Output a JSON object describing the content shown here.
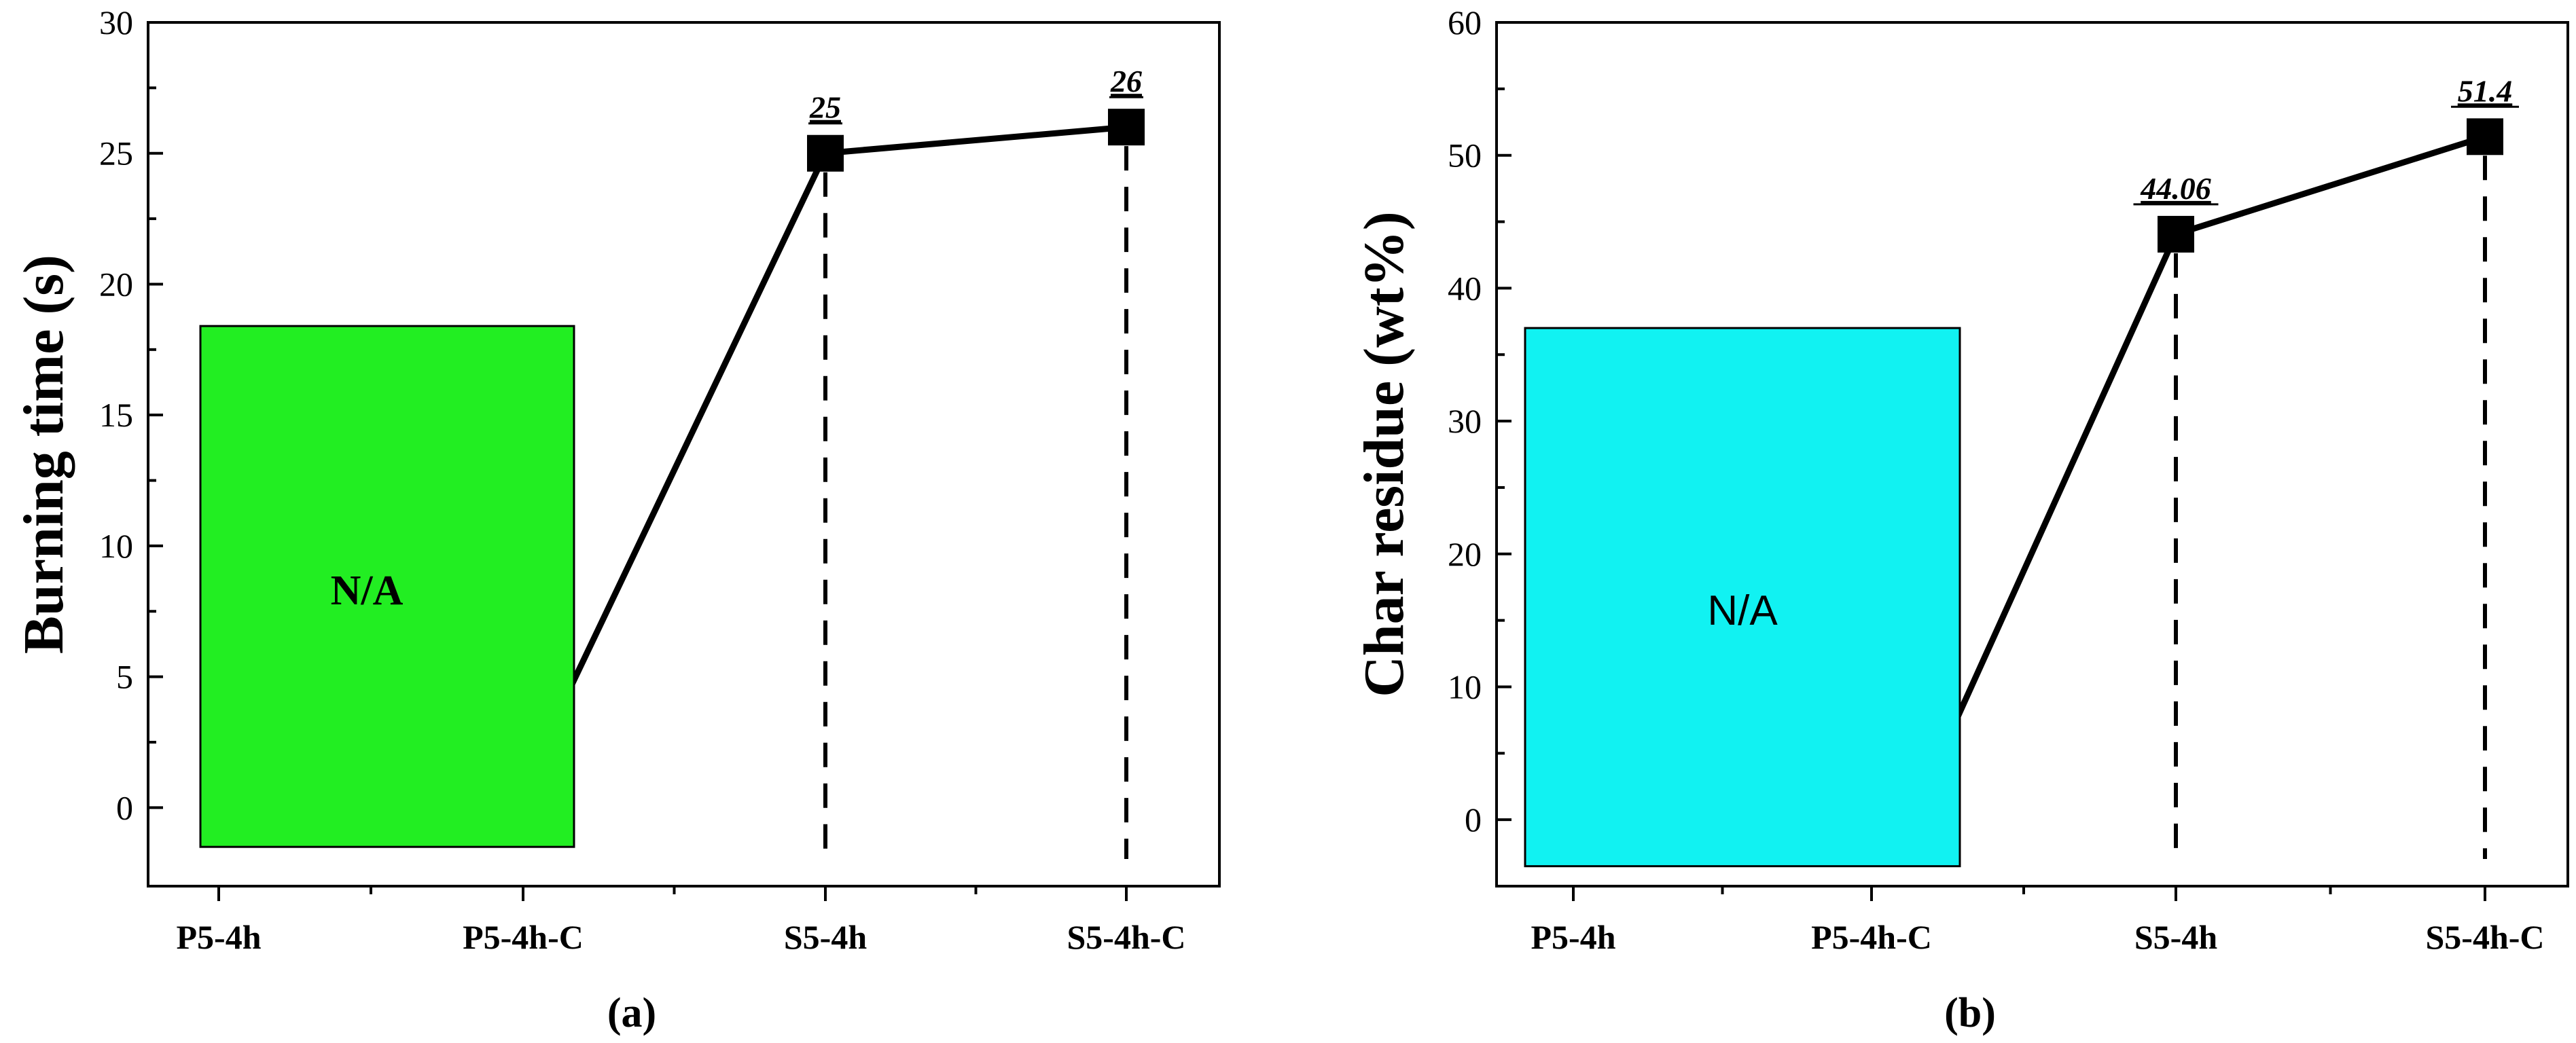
{
  "chart_data": [
    {
      "type": "line",
      "panel_label": "(a)",
      "ylabel": "Burning time (s)",
      "categories": [
        "P5-4h",
        "P5-4h-C",
        "S5-4h",
        "S5-4h-C"
      ],
      "series": [
        {
          "values": [
            null,
            null,
            25,
            26
          ],
          "labels": [
            "",
            "",
            "25",
            "26"
          ]
        }
      ],
      "ylim": [
        -3,
        30
      ],
      "yticks": [
        0,
        5,
        10,
        15,
        20,
        25,
        30
      ],
      "na_box": {
        "text": "N/A",
        "color": "#22ee22",
        "covers": [
          "P5-4h",
          "P5-4h-C"
        ],
        "y_range": [
          -1.5,
          18.4
        ]
      },
      "grid": false
    },
    {
      "type": "line",
      "panel_label": "(b)",
      "ylabel": "Char residue (wt%)",
      "categories": [
        "P5-4h",
        "P5-4h-C",
        "S5-4h",
        "S5-4h-C"
      ],
      "series": [
        {
          "values": [
            null,
            null,
            44.06,
            51.4
          ],
          "labels": [
            "",
            "",
            "44.06",
            "51.4"
          ]
        }
      ],
      "ylim": [
        -5,
        60
      ],
      "yticks": [
        0,
        10,
        20,
        30,
        40,
        50,
        60
      ],
      "na_box": {
        "text": "N/A",
        "color": "#11f2f2",
        "covers": [
          "P5-4h",
          "P5-4h-C"
        ],
        "y_range": [
          -3.5,
          37
        ]
      },
      "grid": false
    }
  ]
}
